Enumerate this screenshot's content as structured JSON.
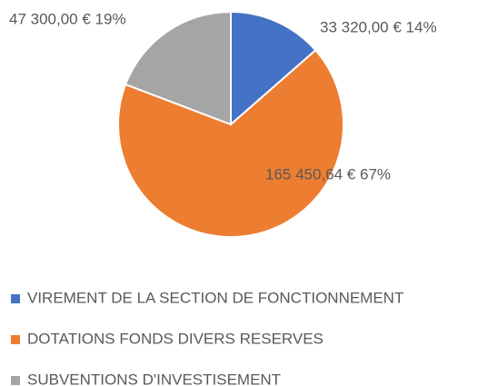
{
  "chart_data": {
    "type": "pie",
    "categories": [
      "VIREMENT DE LA SECTION DE FONCTIONNEMENT",
      "DOTATIONS FONDS DIVERS RESERVES",
      "SUBVENTIONS D'INVESTISEMENT"
    ],
    "values": [
      33320.0,
      165450.64,
      47300.0
    ],
    "value_labels": [
      "33 320,00 € 14%",
      "165 450,64 € 67%",
      "47 300,00 € 19%"
    ],
    "colors": [
      "#4472c4",
      "#ed7d31",
      "#a5a5a5"
    ]
  }
}
